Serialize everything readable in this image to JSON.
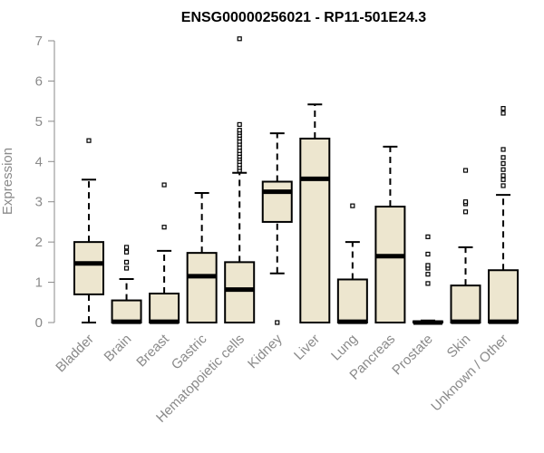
{
  "chart_data": {
    "type": "boxplot",
    "title": "ENSG00000256021 - RP11-501E24.3",
    "ylabel": "Expression",
    "xlabel": "",
    "ylim": [
      0,
      7
    ],
    "yticks": [
      0,
      1,
      2,
      3,
      4,
      5,
      6,
      7
    ],
    "grid": false,
    "colors": {
      "box_fill": "#ede6cf",
      "box_stroke": "#000000",
      "axis": "#8a8a8a"
    },
    "categories": [
      "Bladder",
      "Brain",
      "Breast",
      "Gastric",
      "Hematopoietic cells",
      "Kidney",
      "Liver",
      "Lung",
      "Pancreas",
      "Prostate",
      "Skin",
      "Unknown / Other"
    ],
    "boxes": [
      {
        "category": "Bladder",
        "whisker_low": 0.0,
        "q1": 0.7,
        "median": 1.47,
        "q3": 2.0,
        "whisker_high": 3.55,
        "outliers": [
          4.52
        ]
      },
      {
        "category": "Brain",
        "whisker_low": 0.0,
        "q1": 0.0,
        "median": 0.02,
        "q3": 0.55,
        "whisker_high": 1.08,
        "outliers": [
          1.35,
          1.5,
          1.75,
          1.87
        ]
      },
      {
        "category": "Breast",
        "whisker_low": 0.0,
        "q1": 0.0,
        "median": 0.02,
        "q3": 0.72,
        "whisker_high": 1.78,
        "outliers": [
          2.37,
          3.42
        ]
      },
      {
        "category": "Gastric",
        "whisker_low": 0.0,
        "q1": 0.0,
        "median": 1.15,
        "q3": 1.73,
        "whisker_high": 3.22,
        "outliers": []
      },
      {
        "category": "Hematopoietic cells",
        "whisker_low": 0.0,
        "q1": 0.0,
        "median": 0.82,
        "q3": 1.5,
        "whisker_high": 3.72,
        "outliers": [
          3.78,
          3.85,
          3.92,
          4.0,
          4.07,
          4.13,
          4.2,
          4.27,
          4.35,
          4.43,
          4.5,
          4.58,
          4.65,
          4.72,
          4.78,
          4.92,
          7.05
        ]
      },
      {
        "category": "Kidney",
        "whisker_low": 1.22,
        "q1": 2.5,
        "median": 3.25,
        "q3": 3.5,
        "whisker_high": 4.7,
        "outliers": [
          0.0
        ]
      },
      {
        "category": "Liver",
        "whisker_low": 0.0,
        "q1": 0.0,
        "median": 3.57,
        "q3": 4.57,
        "whisker_high": 5.42,
        "outliers": []
      },
      {
        "category": "Lung",
        "whisker_low": 0.0,
        "q1": 0.0,
        "median": 0.02,
        "q3": 1.07,
        "whisker_high": 2.0,
        "outliers": [
          2.9
        ]
      },
      {
        "category": "Pancreas",
        "whisker_low": 0.0,
        "q1": 0.0,
        "median": 1.65,
        "q3": 2.88,
        "whisker_high": 4.37,
        "outliers": []
      },
      {
        "category": "Prostate",
        "whisker_low": 0.0,
        "q1": 0.0,
        "median": 0.0,
        "q3": 0.03,
        "whisker_high": 0.05,
        "outliers": [
          0.97,
          1.2,
          1.35,
          1.42,
          1.7,
          2.13
        ]
      },
      {
        "category": "Skin",
        "whisker_low": 0.0,
        "q1": 0.0,
        "median": 0.02,
        "q3": 0.92,
        "whisker_high": 1.87,
        "outliers": [
          2.75,
          2.95,
          3.0,
          3.78
        ]
      },
      {
        "category": "Unknown / Other",
        "whisker_low": 0.0,
        "q1": 0.0,
        "median": 0.02,
        "q3": 1.3,
        "whisker_high": 3.17,
        "outliers": [
          3.4,
          3.55,
          3.65,
          3.8,
          3.95,
          4.1,
          4.3,
          5.2,
          5.32
        ]
      }
    ]
  }
}
